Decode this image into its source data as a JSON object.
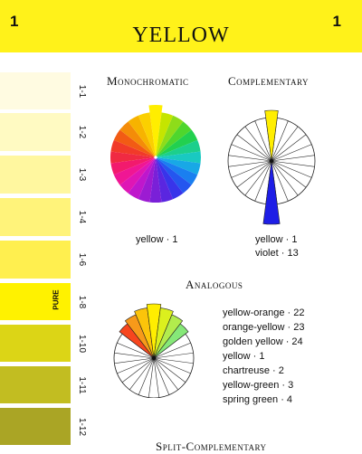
{
  "header": {
    "number_left": "1",
    "number_right": "1",
    "title": "YELLOW",
    "background": "#fff21a"
  },
  "strip": {
    "swatches": [
      {
        "label": "1-1",
        "color": "#fffbe1"
      },
      {
        "label": "1-2",
        "color": "#fffac2"
      },
      {
        "label": "1-3",
        "color": "#fff79f"
      },
      {
        "label": "1-4",
        "color": "#fff37a"
      },
      {
        "label": "1-6",
        "color": "#ffef4f"
      },
      {
        "label": "1-8",
        "color": "#fff200"
      },
      {
        "label": "1-10",
        "color": "#dcd516"
      },
      {
        "label": "1-11",
        "color": "#c2bd21"
      },
      {
        "label": "1-12",
        "color": "#aaa525"
      }
    ],
    "pure_label": "PURE"
  },
  "monochromatic": {
    "title": "Monochromatic",
    "caption": "yellow · 1",
    "segment_colors": [
      "#ffee00",
      "#c5e500",
      "#8edc1a",
      "#4fd62d",
      "#22d04f",
      "#1ccf8c",
      "#19c9c1",
      "#18a8e6",
      "#1a7ff0",
      "#2456ef",
      "#3834ea",
      "#5a26e0",
      "#7a20d8",
      "#9c1bd2",
      "#bf17cc",
      "#df16b5",
      "#f01694",
      "#f21a6d",
      "#f02a42",
      "#f13a29",
      "#f25b14",
      "#f48c08",
      "#f7b300",
      "#fbd000"
    ]
  },
  "complementary": {
    "title": "Complementary",
    "caption": [
      "yellow · 1",
      "violet · 13"
    ],
    "colors": {
      "yellow": "#ffee00",
      "violet": "#1e1ee6"
    }
  },
  "analogous": {
    "title": "Analogous",
    "items": [
      "yellow-orange · 22",
      "orange-yellow · 23",
      "golden yellow · 24",
      "yellow · 1",
      "chartreuse · 2",
      "yellow-green · 3",
      "spring green · 4"
    ],
    "segment_colors": {
      "22": "#f7461e",
      "23": "#f79a1a",
      "24": "#fcc40a",
      "1": "#ffee00",
      "2": "#dbf01e",
      "3": "#b2ec4d",
      "4": "#86e878"
    }
  },
  "split_complementary": {
    "title": "Split-Complementary"
  }
}
